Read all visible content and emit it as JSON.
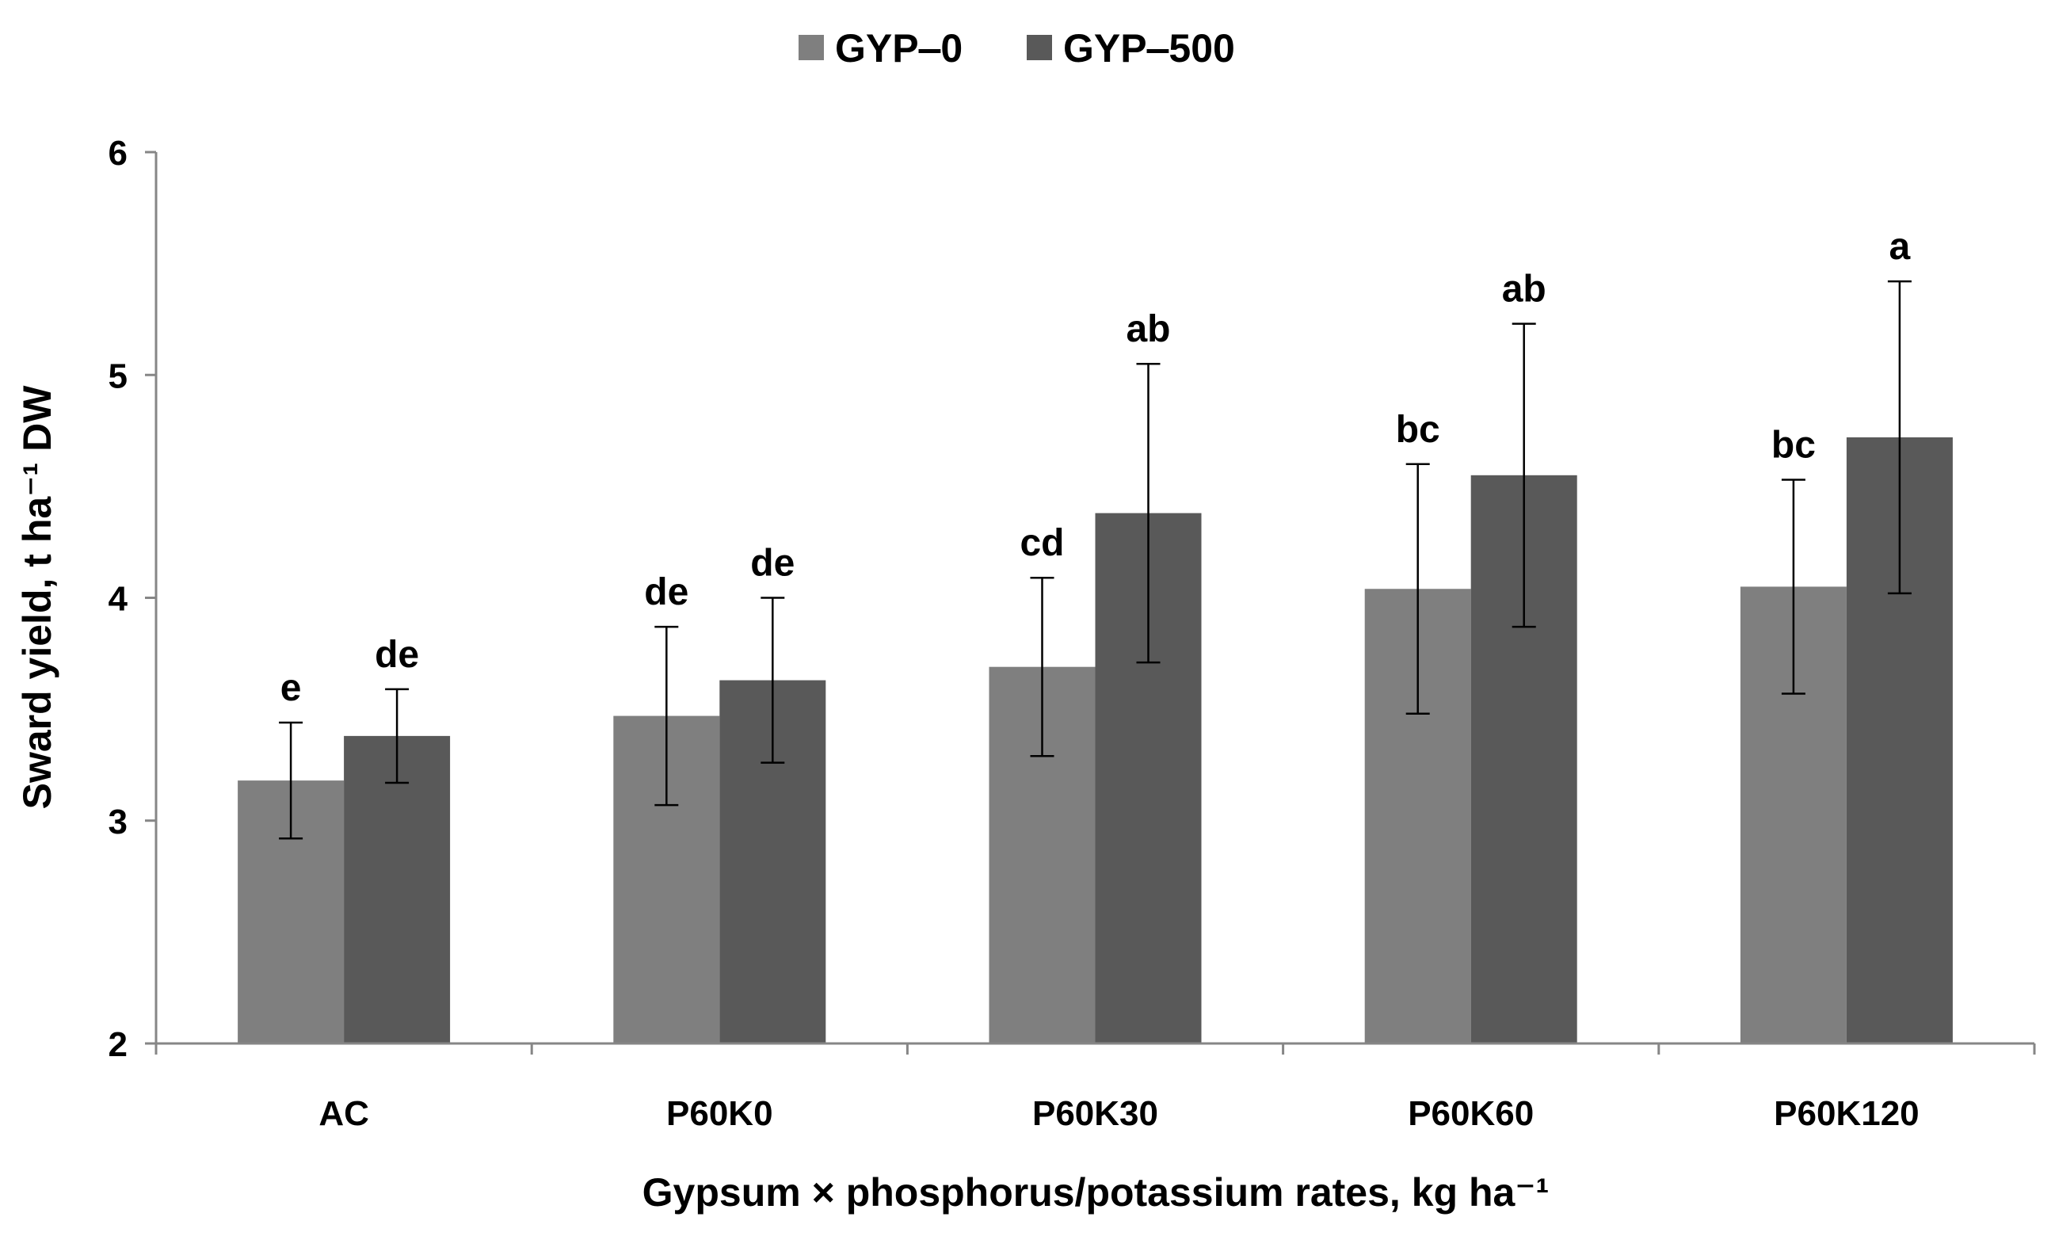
{
  "chart_data": {
    "type": "bar",
    "title": "",
    "xlabel": "Gypsum × phosphorus/potassium  rates, kg ha⁻¹",
    "ylabel": "Sward yield, t ha⁻¹ DW",
    "ylim": [
      2,
      6
    ],
    "yticks": [
      2,
      3,
      4,
      5,
      6
    ],
    "grid": false,
    "legend_position": "top-center",
    "categories": [
      "AC",
      "P60K0",
      "P60K30",
      "P60K60",
      "P60K120"
    ],
    "series": [
      {
        "name": "GYP‒0",
        "color": "#7f7f7f",
        "values": [
          3.18,
          3.47,
          3.69,
          4.04,
          4.05
        ],
        "error": [
          0.26,
          0.4,
          0.4,
          0.56,
          0.48
        ],
        "labels": [
          "e",
          "de",
          "cd",
          "bc",
          "bc"
        ]
      },
      {
        "name": "GYP‒500",
        "color": "#595959",
        "values": [
          3.38,
          3.63,
          4.38,
          4.55,
          4.72
        ],
        "error": [
          0.21,
          0.37,
          0.67,
          0.68,
          0.7
        ],
        "labels": [
          "de",
          "de",
          "ab",
          "ab",
          "a"
        ]
      }
    ]
  }
}
